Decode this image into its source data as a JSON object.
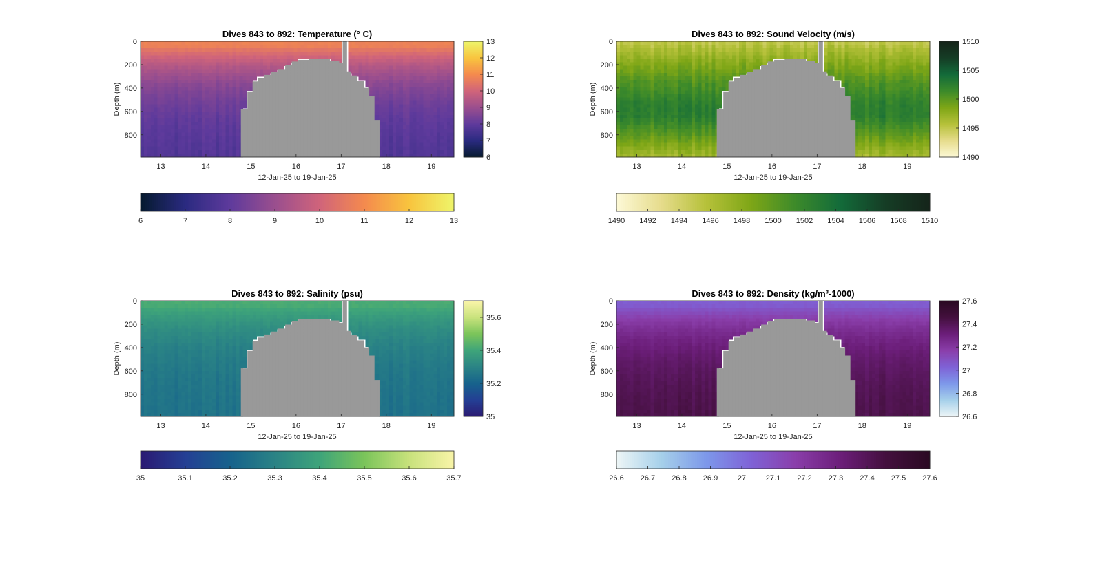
{
  "figure": {
    "background": "#ffffff"
  },
  "chart_data": [
    {
      "type": "heatmap",
      "title": "Dives 843 to 892: Temperature (° C)",
      "xlabel": "12-Jan-25 to 19-Jan-25",
      "ylabel": "Depth (m)",
      "xlim": [
        12.55,
        19.5
      ],
      "ylim": [
        0,
        990
      ],
      "y_reversed": true,
      "xticks": [
        13,
        14,
        15,
        16,
        17,
        18,
        19
      ],
      "yticks": [
        0,
        200,
        400,
        600,
        800
      ],
      "colorbar": {
        "ticks": [
          6,
          7,
          8,
          9,
          10,
          11,
          12,
          13
        ],
        "range": [
          6,
          13
        ],
        "colors": [
          "#051a2e",
          "#2a2a80",
          "#5e3a9c",
          "#9a4e8e",
          "#d0647a",
          "#f48a4e",
          "#f8c43e",
          "#eef56a"
        ]
      },
      "horizontal_colorbar": {
        "ticks": [
          "6",
          "7",
          "8",
          "9",
          "10",
          "11",
          "12",
          "13"
        ],
        "range": [
          6,
          13
        ]
      },
      "field": {
        "surface": 10.8,
        "deep": 7.6,
        "thermocline": 320
      },
      "land_color": "#999999"
    },
    {
      "type": "heatmap",
      "title": "Dives 843 to 892: Sound Velocity (m/s)",
      "xlabel": "12-Jan-25 to 19-Jan-25",
      "ylabel": "Depth (m)",
      "xlim": [
        12.55,
        19.5
      ],
      "ylim": [
        0,
        990
      ],
      "y_reversed": true,
      "xticks": [
        13,
        14,
        15,
        16,
        17,
        18,
        19
      ],
      "yticks": [
        0,
        200,
        400,
        600,
        800
      ],
      "colorbar": {
        "ticks": [
          1490,
          1495,
          1500,
          1505,
          1510
        ],
        "range": [
          1490,
          1510
        ],
        "colors": [
          "#fdf9d7",
          "#e6dc8c",
          "#b6c13a",
          "#7ea616",
          "#3c8a2a",
          "#136b3a",
          "#153d25",
          "#15241a"
        ]
      },
      "horizontal_colorbar": {
        "ticks": [
          "1490",
          "1492",
          "1494",
          "1496",
          "1498",
          "1500",
          "1502",
          "1504",
          "1506",
          "1508",
          "1510"
        ],
        "range": [
          1490,
          1510
        ]
      },
      "field": {
        "profile": [
          [
            0,
            1495
          ],
          [
            150,
            1497.5
          ],
          [
            350,
            1500.5
          ],
          [
            550,
            1502.5
          ],
          [
            650,
            1502.5
          ],
          [
            800,
            1500
          ],
          [
            990,
            1496.5
          ]
        ]
      },
      "land_color": "#999999"
    },
    {
      "type": "heatmap",
      "title": "Dives 843 to 892: Salinity (psu)",
      "xlabel": "12-Jan-25 to 19-Jan-25",
      "ylabel": "Depth (m)",
      "xlim": [
        12.55,
        19.5
      ],
      "ylim": [
        0,
        990
      ],
      "y_reversed": true,
      "xticks": [
        13,
        14,
        15,
        16,
        17,
        18,
        19
      ],
      "yticks": [
        0,
        200,
        400,
        600,
        800
      ],
      "colorbar": {
        "ticks": [
          35,
          35.2,
          35.4,
          35.6
        ],
        "range": [
          35,
          35.7
        ],
        "colors": [
          "#2b1a72",
          "#243f94",
          "#16628c",
          "#2a8385",
          "#3ea47a",
          "#7ac45a",
          "#c8e27c",
          "#f9f4a8"
        ]
      },
      "horizontal_colorbar": {
        "ticks": [
          "35",
          "35.1",
          "35.2",
          "35.3",
          "35.4",
          "35.5",
          "35.6",
          "35.7"
        ],
        "range": [
          35,
          35.7
        ]
      },
      "field": {
        "surface": 35.42,
        "deep": 35.24,
        "thermocline": 300
      },
      "land_color": "#999999"
    },
    {
      "type": "heatmap",
      "title": "Dives 843 to 892: Density (kg/m³-1000)",
      "xlabel": "12-Jan-25 to 19-Jan-25",
      "ylabel": "Depth (m)",
      "xlim": [
        12.55,
        19.5
      ],
      "ylim": [
        0,
        990
      ],
      "y_reversed": true,
      "xticks": [
        13,
        14,
        15,
        16,
        17,
        18,
        19
      ],
      "yticks": [
        0,
        200,
        400,
        600,
        800
      ],
      "colorbar": {
        "ticks": [
          26.6,
          26.8,
          27,
          27.2,
          27.4,
          27.6
        ],
        "range": [
          26.6,
          27.6
        ],
        "colors": [
          "#eef6f6",
          "#a6d0ea",
          "#7d98ea",
          "#7f62d6",
          "#8a3eaa",
          "#6c1e7a",
          "#44103e",
          "#2a0a22"
        ]
      },
      "horizontal_colorbar": {
        "ticks": [
          "26.6",
          "26.7",
          "26.8",
          "26.9",
          "27",
          "27.1",
          "27.2",
          "27.3",
          "27.4",
          "27.5",
          "27.6"
        ],
        "range": [
          26.6,
          27.6
        ]
      },
      "field": {
        "surface": 27.05,
        "deep": 27.45,
        "thermocline": 330
      },
      "land_color": "#999999"
    }
  ]
}
